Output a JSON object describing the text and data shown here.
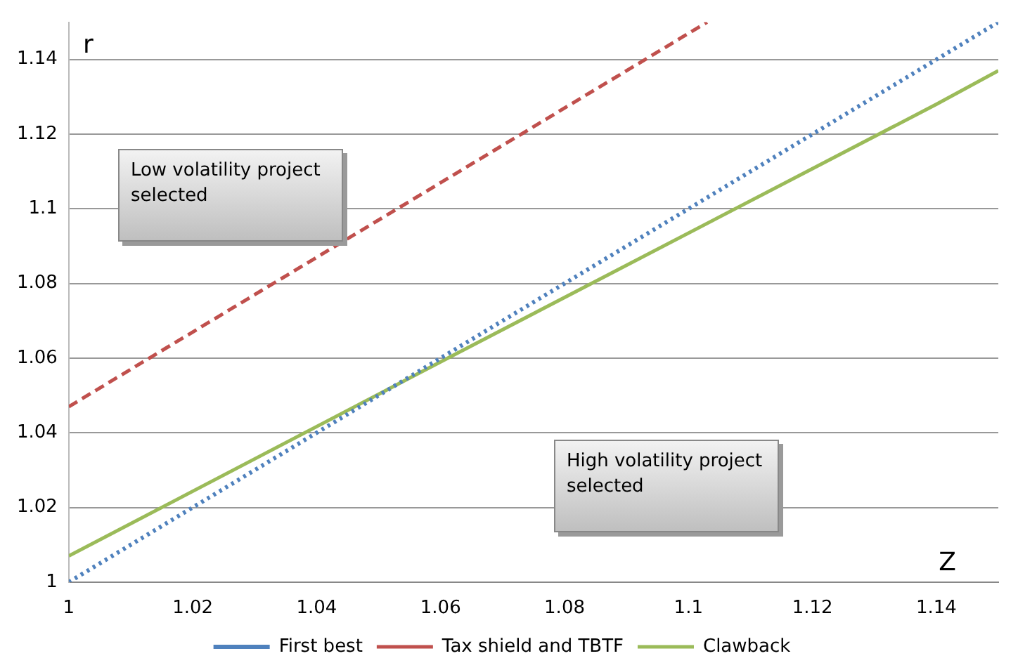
{
  "chart_data": {
    "type": "line",
    "xlabel": "Z",
    "ylabel": "r",
    "xlim": [
      1,
      1.15
    ],
    "xticks": [
      1,
      1.02,
      1.04,
      1.06,
      1.08,
      1.1,
      1.12,
      1.14
    ],
    "ylim": [
      1,
      1.15
    ],
    "yticks": [
      1,
      1.02,
      1.04,
      1.06,
      1.08,
      1.1,
      1.12,
      1.14
    ],
    "grid": "y",
    "legend": "bottom",
    "marker": "none",
    "series": [
      {
        "name": "First best",
        "color": "#4f81bd",
        "line_style": "dotted",
        "x": [
          1,
          1.15
        ],
        "values": [
          1,
          1.15
        ]
      },
      {
        "name": "Tax shield and TBTF",
        "color": "#c0504d",
        "line_style": "dashed",
        "x": [
          1,
          1.103
        ],
        "values": [
          1.047,
          1.15
        ]
      },
      {
        "name": "Clawback",
        "color": "#9bbb59",
        "line_style": "solid",
        "x": [
          1,
          1.06,
          1.14,
          1.15
        ],
        "values": [
          1.007,
          1.059,
          1.128,
          1.137
        ]
      }
    ],
    "annotations": [
      "Low volatility project selected",
      "High volatility project selected"
    ]
  }
}
